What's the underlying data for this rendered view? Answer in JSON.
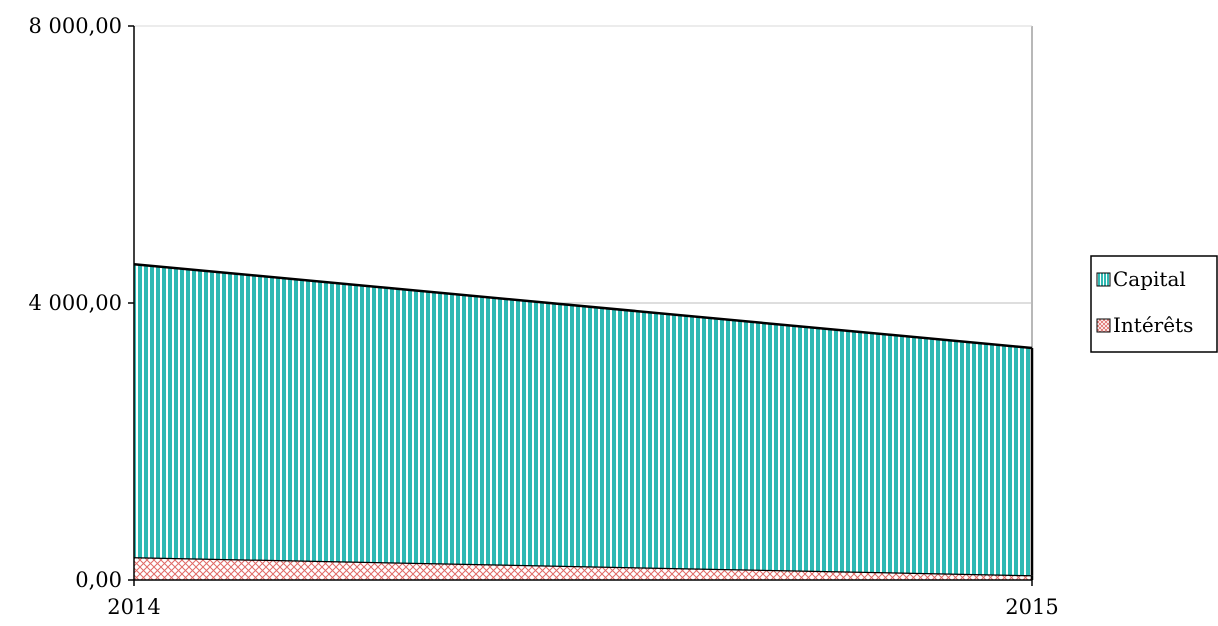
{
  "chart_data": {
    "type": "area",
    "stacked": true,
    "x": [
      "2014",
      "2015"
    ],
    "ylim": [
      0,
      8000
    ],
    "y_ticks": [
      {
        "value": 0,
        "label": "0,00"
      },
      {
        "value": 4000,
        "label": "4 000,00"
      },
      {
        "value": 8000,
        "label": "8 000,00"
      }
    ],
    "x_ticks": [
      "2014",
      "2015"
    ],
    "series": [
      {
        "name": "Intérêts",
        "values": [
          330,
          70
        ],
        "color": "#d9534f",
        "pattern": "crosshatch"
      },
      {
        "name": "Capital",
        "values": [
          4230,
          3280
        ],
        "color": "#2fb9b3",
        "pattern": "vertical-stripes"
      }
    ],
    "grid": "horizontal",
    "legend": "right",
    "title": "",
    "xlabel": "",
    "ylabel": ""
  }
}
